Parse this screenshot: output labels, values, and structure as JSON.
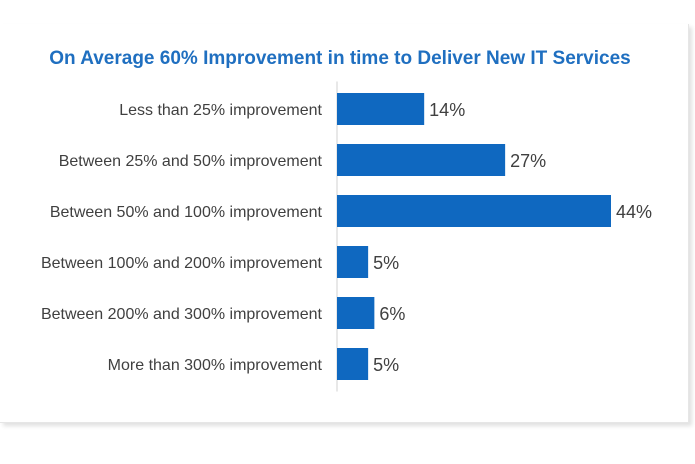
{
  "chart_data": {
    "type": "bar",
    "orientation": "horizontal",
    "title": "On Average 60% Improvement in time to Deliver New IT Services",
    "categories": [
      "Less than 25% improvement",
      "Between 25% and 50% improvement",
      "Between 50% and 100% improvement",
      "Between 100% and 200% improvement",
      "Between 200% and 300% improvement",
      "More than 300% improvement"
    ],
    "values": [
      14,
      27,
      44,
      5,
      6,
      5
    ],
    "value_labels": [
      "14%",
      "27%",
      "44%",
      "5%",
      "6%",
      "5%"
    ],
    "bar_color": "#0f68c0",
    "title_color": "#1f6fc0",
    "xlim": [
      0,
      44
    ],
    "grid": false,
    "legend": "none"
  }
}
